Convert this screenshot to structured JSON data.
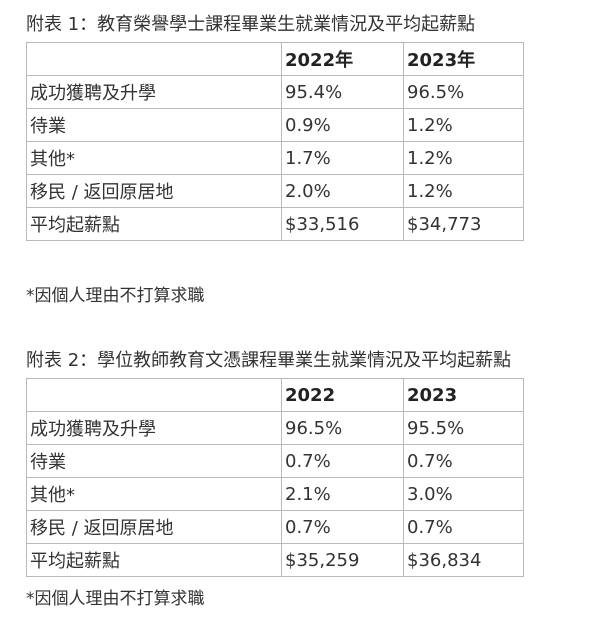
{
  "table1": {
    "caption": "附表 1：教育榮譽學士課程畢業生就業情況及平均起薪點",
    "header": [
      "",
      "2022年",
      "2023年"
    ],
    "rows": [
      [
        "成功獲聘及升學",
        "95.4%",
        "96.5%"
      ],
      [
        "待業",
        "0.9%",
        "1.2%"
      ],
      [
        "其他*",
        "1.7%",
        "1.2%"
      ],
      [
        "移民 / 返回原居地",
        "2.0%",
        "1.2%"
      ],
      [
        "平均起薪點",
        "$33,516",
        "$34,773"
      ]
    ],
    "footnote": "*因個人理由不打算求職"
  },
  "table2": {
    "caption": "附表 2：學位教師教育文憑課程畢業生就業情況及平均起薪點",
    "header": [
      "",
      "2022",
      "2023"
    ],
    "rows": [
      [
        "成功獲聘及升學",
        "96.5%",
        "95.5%"
      ],
      [
        "待業",
        "0.7%",
        "0.7%"
      ],
      [
        "其他*",
        "2.1%",
        "3.0%"
      ],
      [
        "移民 / 返回原居地",
        "0.7%",
        "0.7%"
      ],
      [
        "平均起薪點",
        "$35,259",
        "$36,834"
      ]
    ],
    "footnote": "*因個人理由不打算求職"
  }
}
